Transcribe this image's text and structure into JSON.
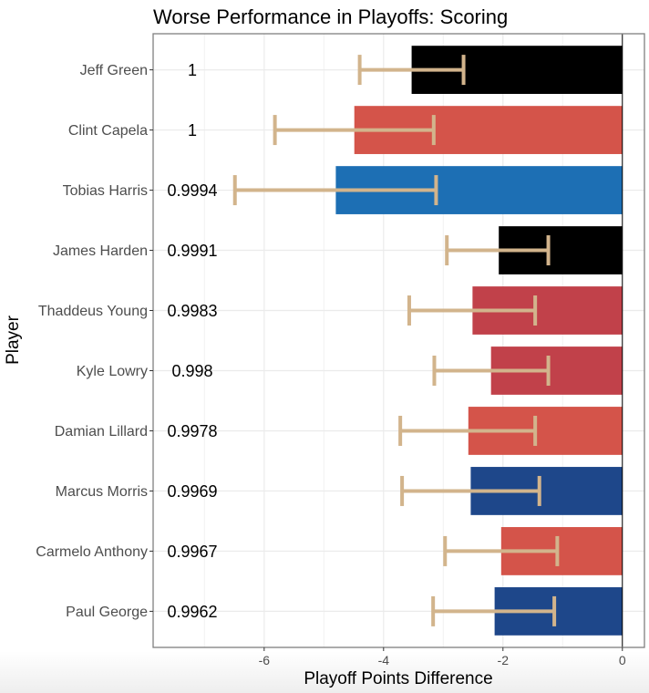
{
  "chart_data": {
    "type": "bar",
    "orientation": "horizontal",
    "title": "Worse Performance in Playoffs: Scoring",
    "xlabel": "Playoff Points Difference",
    "ylabel": "Player",
    "xlim": [
      -7.86,
      0.37
    ],
    "xticks": [
      -6,
      -4,
      -2,
      0
    ],
    "xtick_labels": [
      "-6",
      "-4",
      "-2",
      "0"
    ],
    "grid": true,
    "legend": "none",
    "error_bar_color": "#D2B48C",
    "categories": [
      "Jeff Green",
      "Clint Capela",
      "Tobias Harris",
      "James Harden",
      "Thaddeus Young",
      "Kyle Lowry",
      "Damian Lillard",
      "Marcus Morris",
      "Carmelo Anthony",
      "Paul George"
    ],
    "values": [
      -3.53,
      -4.49,
      -4.8,
      -2.07,
      -2.51,
      -2.2,
      -2.58,
      -2.54,
      -2.03,
      -2.14
    ],
    "error_low": [
      -4.4,
      -5.82,
      -6.49,
      -2.94,
      -3.57,
      -3.15,
      -3.72,
      -3.69,
      -2.97,
      -3.17
    ],
    "error_high": [
      -2.66,
      -3.16,
      -3.12,
      -1.24,
      -1.46,
      -1.24,
      -1.46,
      -1.39,
      -1.09,
      -1.14
    ],
    "bar_colors": [
      "#000000",
      "#D4544A",
      "#1D6FB4",
      "#000000",
      "#C1414A",
      "#C1414A",
      "#D4544A",
      "#1E478A",
      "#D4544A",
      "#1E478A"
    ],
    "value_labels": [
      "1",
      "1",
      "0.9994",
      "0.9991",
      "0.9983",
      "0.998",
      "0.9978",
      "0.9969",
      "0.9967",
      "0.9962"
    ]
  }
}
